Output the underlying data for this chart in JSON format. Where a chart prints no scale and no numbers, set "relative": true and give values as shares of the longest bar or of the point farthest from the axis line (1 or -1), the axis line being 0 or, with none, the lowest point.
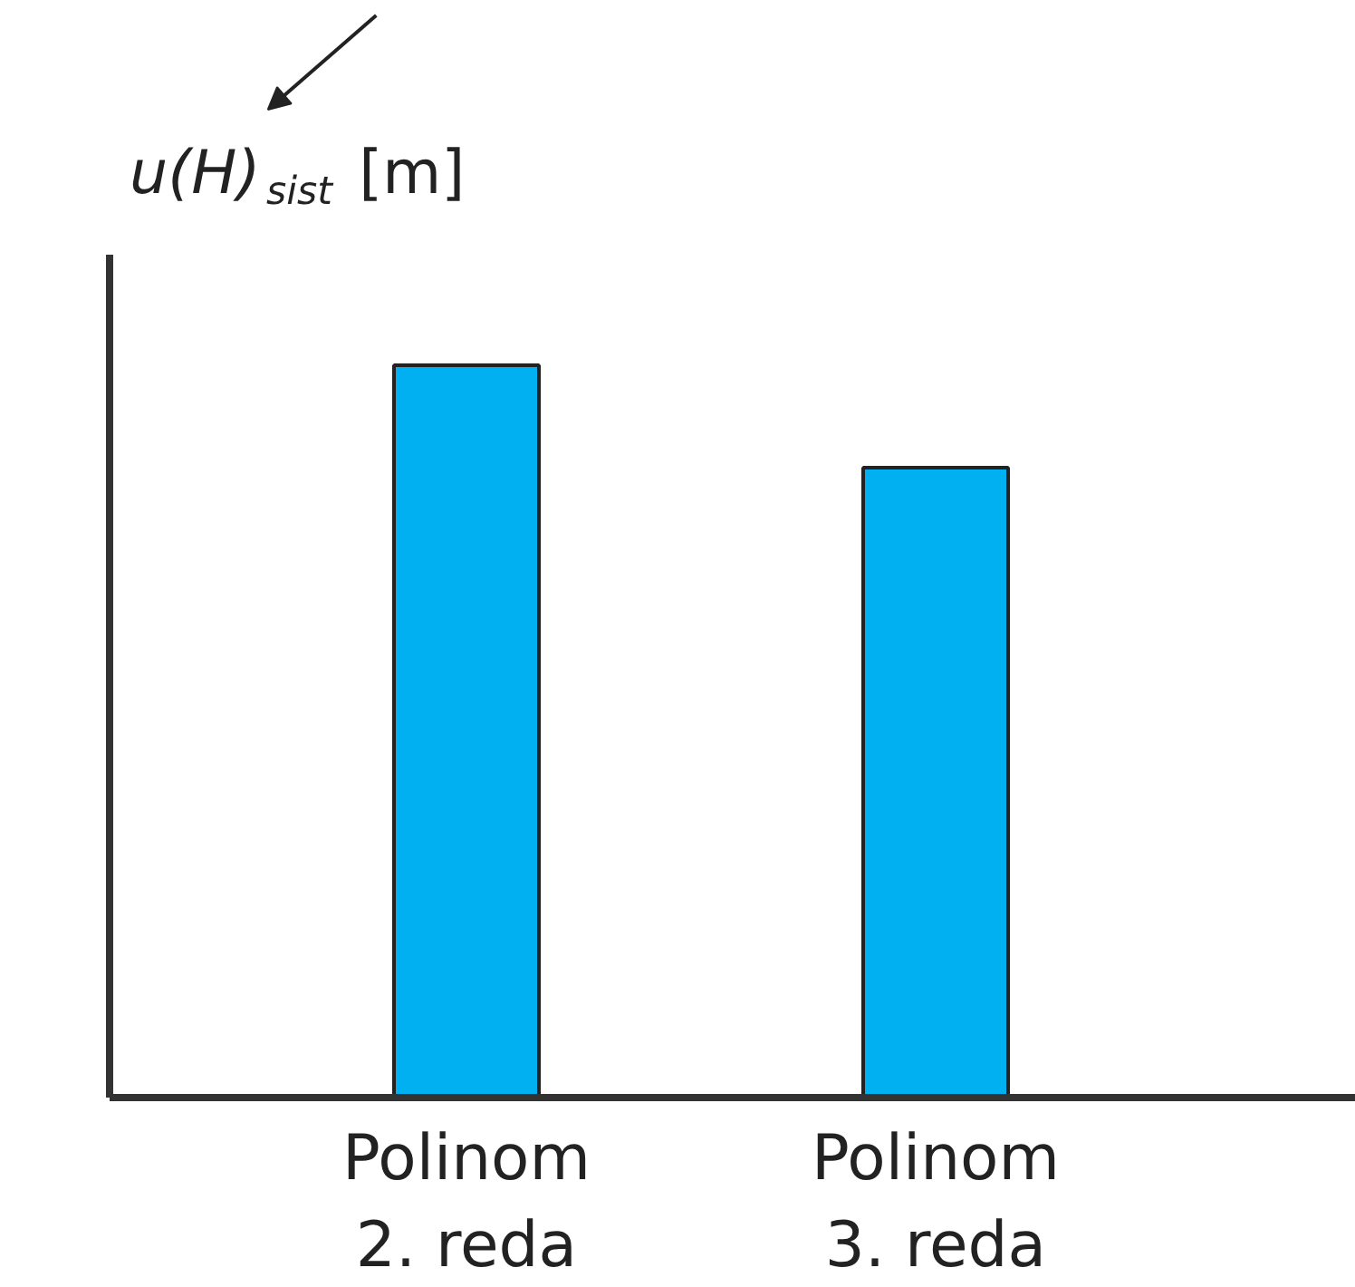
{
  "chart_data": {
    "type": "bar",
    "relative": true,
    "ylabel": "u(H)$_{sist}$ [m]",
    "categories": [
      "Polinom\n2. reda",
      "Polinom\n3. reda"
    ],
    "values": [
      1,
      0.86
    ],
    "color": "#00b0f0",
    "grid": false
  }
}
